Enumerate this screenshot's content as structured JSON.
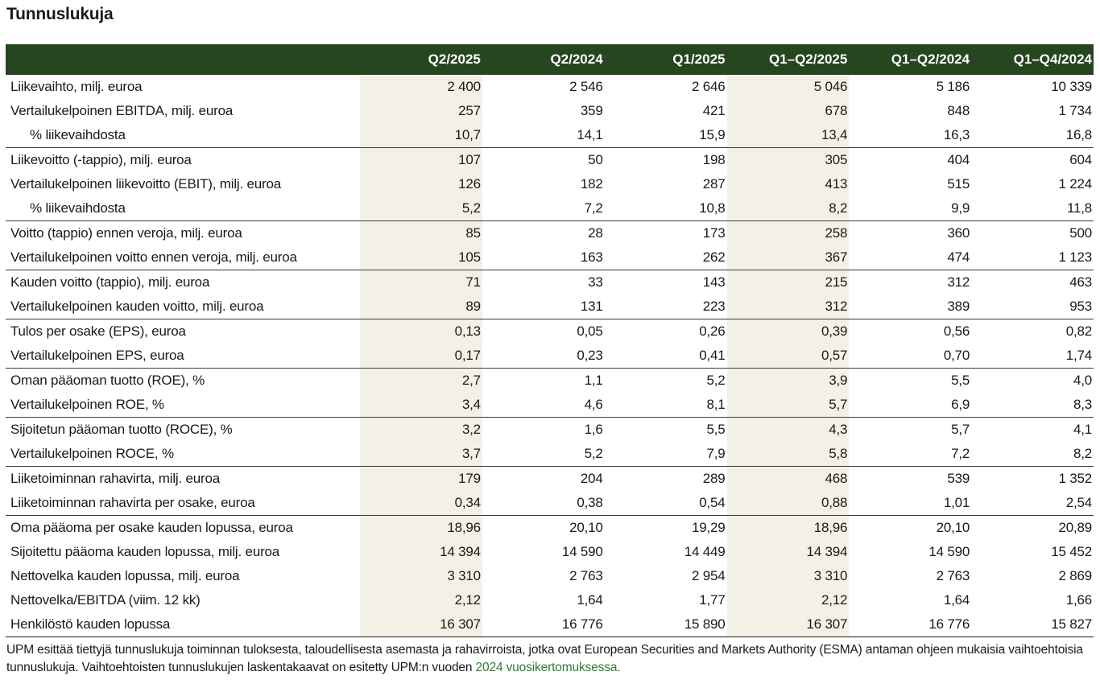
{
  "page_title": "Tunnuslukuja",
  "columns": [
    "Q2/2025",
    "Q2/2024",
    "Q1/2025",
    "Q1–Q2/2025",
    "Q1–Q2/2024",
    "Q1–Q4/2024"
  ],
  "highlight_color": "#f3f1e5",
  "header_color": "#26461f",
  "link_color": "#2e7d32",
  "rows": [
    {
      "label": "Liikevaihto, milj. euroa",
      "values": [
        "2 400",
        "2 546",
        "2 646",
        "5 046",
        "5 186",
        "10 339"
      ]
    },
    {
      "label": "Vertailukelpoinen EBITDA, milj. euroa",
      "values": [
        "257",
        "359",
        "421",
        "678",
        "848",
        "1 734"
      ]
    },
    {
      "label": "% liikevaihdosta",
      "values": [
        "10,7",
        "14,1",
        "15,9",
        "13,4",
        "16,3",
        "16,8"
      ]
    },
    {
      "label": "Liikevoitto (-tappio), milj. euroa",
      "values": [
        "107",
        "50",
        "198",
        "305",
        "404",
        "604"
      ]
    },
    {
      "label": "Vertailukelpoinen liikevoitto (EBIT), milj. euroa",
      "values": [
        "126",
        "182",
        "287",
        "413",
        "515",
        "1 224"
      ]
    },
    {
      "label": "% liikevaihdosta",
      "values": [
        "5,2",
        "7,2",
        "10,8",
        "8,2",
        "9,9",
        "11,8"
      ]
    },
    {
      "label": "Voitto (tappio) ennen veroja, milj. euroa",
      "values": [
        "85",
        "28",
        "173",
        "258",
        "360",
        "500"
      ]
    },
    {
      "label": "Vertailukelpoinen voitto ennen veroja, milj. euroa",
      "values": [
        "105",
        "163",
        "262",
        "367",
        "474",
        "1 123"
      ]
    },
    {
      "label": "Kauden voitto (tappio), milj. euroa",
      "values": [
        "71",
        "33",
        "143",
        "215",
        "312",
        "463"
      ]
    },
    {
      "label": "Vertailukelpoinen kauden voitto, milj. euroa",
      "values": [
        "89",
        "131",
        "223",
        "312",
        "389",
        "953"
      ]
    },
    {
      "label": "Tulos per osake (EPS), euroa",
      "values": [
        "0,13",
        "0,05",
        "0,26",
        "0,39",
        "0,56",
        "0,82"
      ]
    },
    {
      "label": "Vertailukelpoinen EPS, euroa",
      "values": [
        "0,17",
        "0,23",
        "0,41",
        "0,57",
        "0,70",
        "1,74"
      ]
    },
    {
      "label": "Oman pääoman tuotto (ROE), %",
      "values": [
        "2,7",
        "1,1",
        "5,2",
        "3,9",
        "5,5",
        "4,0"
      ]
    },
    {
      "label": "Vertailukelpoinen ROE, %",
      "values": [
        "3,4",
        "4,6",
        "8,1",
        "5,7",
        "6,9",
        "8,3"
      ]
    },
    {
      "label": "Sijoitetun pääoman tuotto (ROCE), %",
      "values": [
        "3,2",
        "1,6",
        "5,5",
        "4,3",
        "5,7",
        "4,1"
      ]
    },
    {
      "label": "Vertailukelpoinen ROCE, %",
      "values": [
        "3,7",
        "5,2",
        "7,9",
        "5,8",
        "7,2",
        "8,2"
      ]
    },
    {
      "label": "Liiketoiminnan rahavirta, milj. euroa",
      "values": [
        "179",
        "204",
        "289",
        "468",
        "539",
        "1 352"
      ]
    },
    {
      "label": "Liiketoiminnan rahavirta per osake, euroa",
      "values": [
        "0,34",
        "0,38",
        "0,54",
        "0,88",
        "1,01",
        "2,54"
      ]
    },
    {
      "label": "Oma pääoma per osake kauden lopussa, euroa",
      "values": [
        "18,96",
        "20,10",
        "19,29",
        "18,96",
        "20,10",
        "20,89"
      ]
    },
    {
      "label": "Sijoitettu pääoma kauden lopussa, milj. euroa",
      "values": [
        "14 394",
        "14 590",
        "14 449",
        "14 394",
        "14 590",
        "15 452"
      ]
    },
    {
      "label": "Nettovelka kauden lopussa, milj. euroa",
      "values": [
        "3 310",
        "2 763",
        "2 954",
        "3 310",
        "2 763",
        "2 869"
      ]
    },
    {
      "label": "Nettovelka/EBITDA (viim. 12 kk)",
      "values": [
        "2,12",
        "1,64",
        "1,77",
        "2,12",
        "1,64",
        "1,66"
      ]
    },
    {
      "label": "Henkilöstö kauden lopussa",
      "values": [
        "16 307",
        "16 776",
        "15 890",
        "16 307",
        "16 776",
        "15 827"
      ]
    }
  ],
  "footnote": {
    "text": "UPM esittää tiettyjä tunnuslukuja toiminnan tuloksesta, taloudellisesta asemasta ja rahavirroista, jotka ovat European Securities and Markets Authority (ESMA) antaman ohjeen mukaisia vaihtoehtoisia tunnuslukuja. Vaihtoehtoisten tunnuslukujen laskentakaavat on esitetty UPM:n vuoden ",
    "link_text": "2024 vuosikertomuksessa."
  }
}
